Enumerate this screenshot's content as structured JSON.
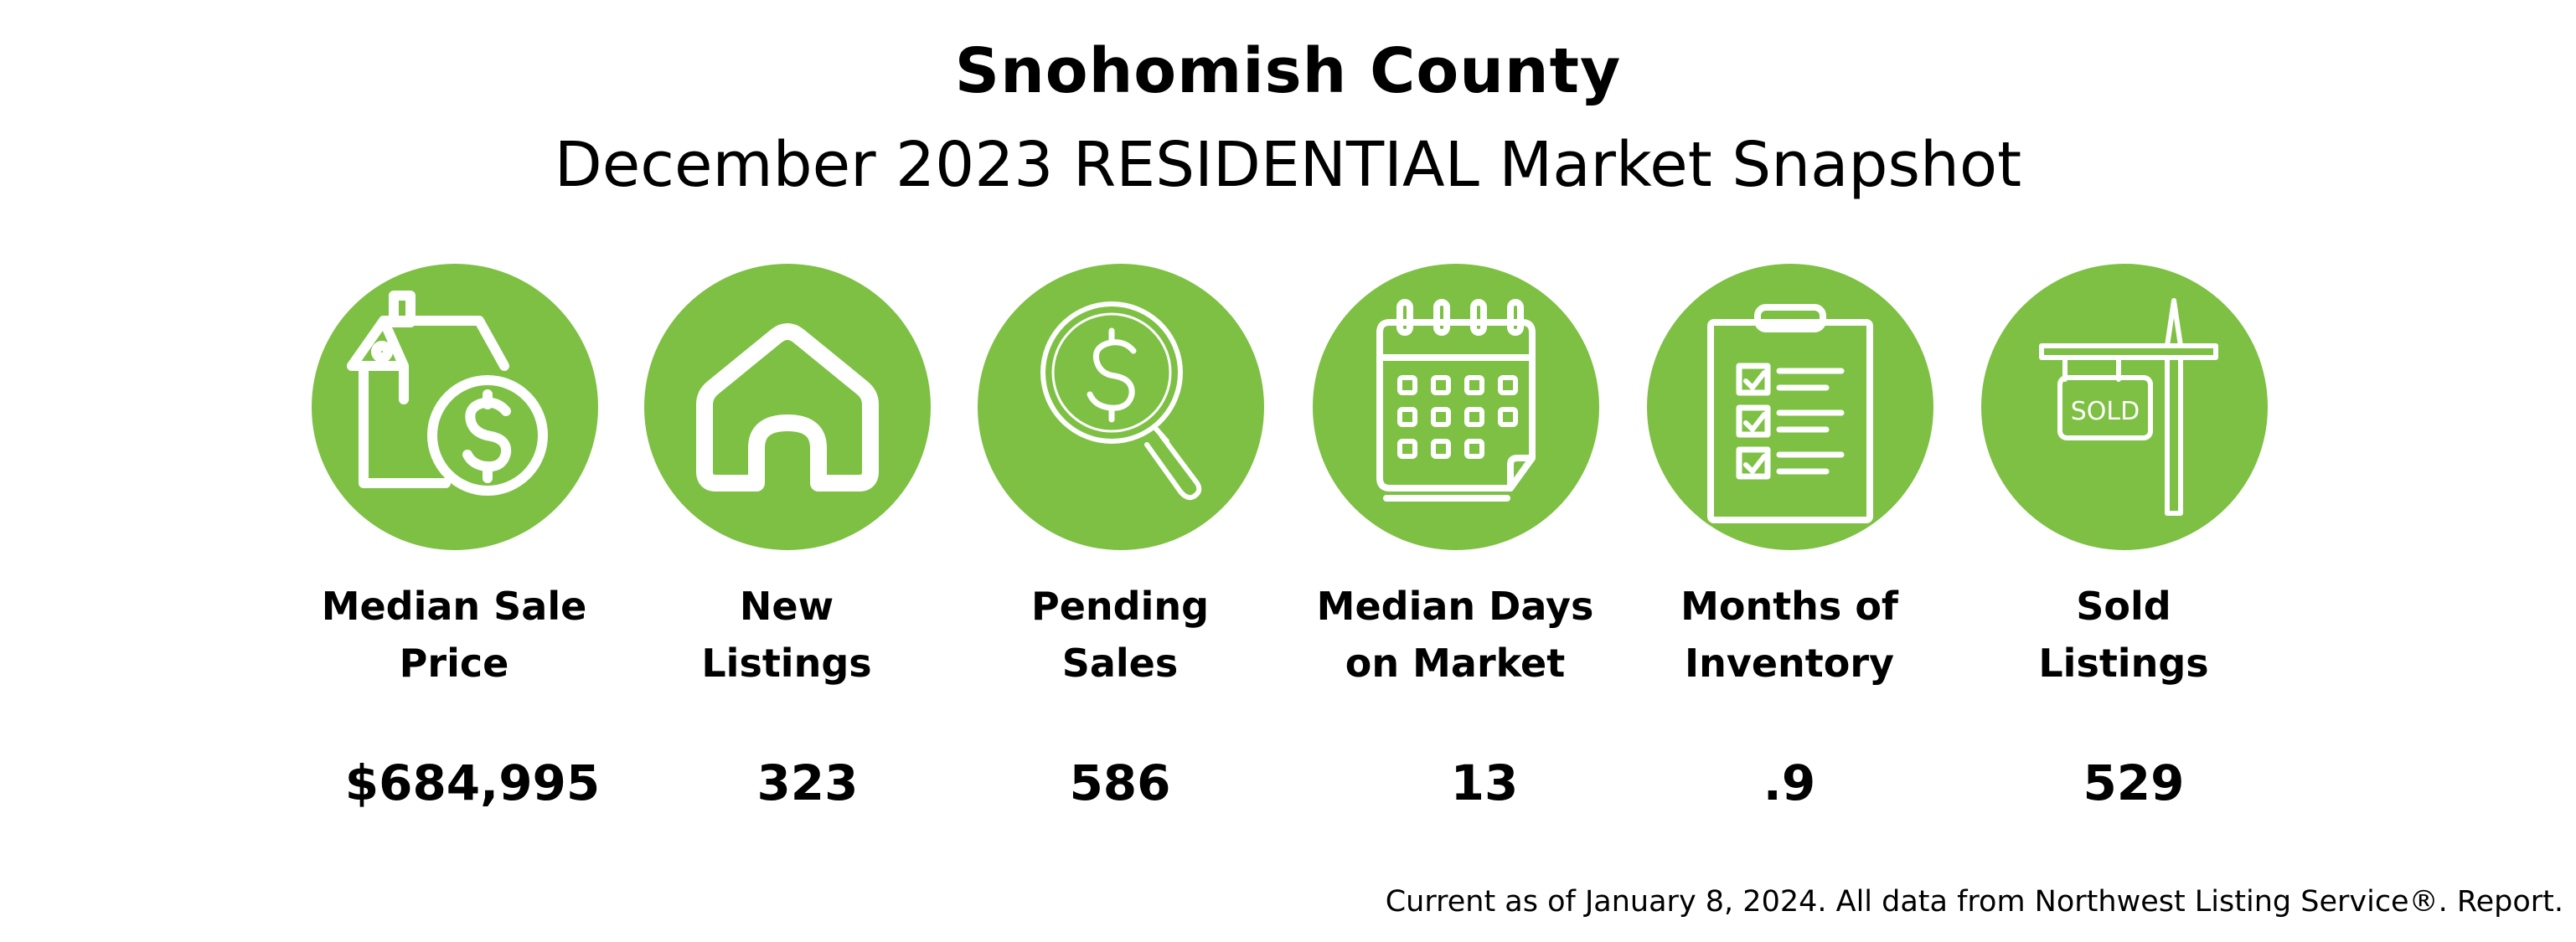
{
  "header": {
    "title": "Snohomish County",
    "subtitle": "December 2023 RESIDENTIAL Market Snapshot"
  },
  "theme": {
    "accent": "#7DC043",
    "icon_stroke": "#FFFFFF",
    "text": "#000000"
  },
  "metrics": [
    {
      "icon": "house-dollar-icon",
      "label_line1": "Median Sale",
      "label_line2": "Price",
      "value": "$684,995"
    },
    {
      "icon": "house-icon",
      "label_line1": "New",
      "label_line2": "Listings",
      "value": "323"
    },
    {
      "icon": "magnifier-dollar-icon",
      "label_line1": "Pending",
      "label_line2": "Sales",
      "value": "586"
    },
    {
      "icon": "calendar-icon",
      "label_line1": "Median Days",
      "label_line2": "on Market",
      "value": "13"
    },
    {
      "icon": "clipboard-checklist-icon",
      "label_line1": "Months of",
      "label_line2": "Inventory",
      "value": ".9"
    },
    {
      "icon": "sold-sign-icon",
      "label_line1": "Sold",
      "label_line2": "Listings",
      "value": "529",
      "sign_text": "SOLD"
    }
  ],
  "footer": {
    "note": "Current as of January 8, 2024. All data from Northwest Listing Service®. Report."
  }
}
